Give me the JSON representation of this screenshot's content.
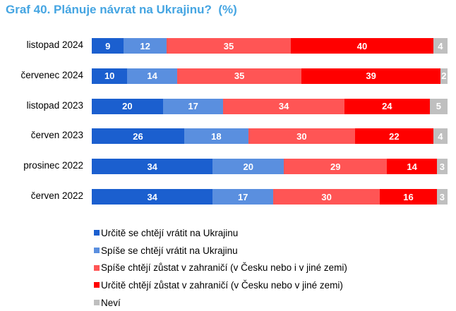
{
  "chart_data": {
    "type": "bar",
    "orientation": "horizontal",
    "stacked": true,
    "title": "Graf 40. Plánuje návrat na Ukrajinu?  (%)",
    "xlabel": "",
    "ylabel": "",
    "xlim": [
      0,
      100
    ],
    "grid": false,
    "legend_position": "bottom",
    "categories": [
      "listopad 2024",
      "červenec 2024",
      "listopad 2023",
      "červen 2023",
      "prosinec 2022",
      "červen 2022"
    ],
    "series": [
      {
        "name": "Určitě se chtějí vrátit na Ukrajinu",
        "color": "#1b5fcf",
        "values": [
          9,
          10,
          20,
          26,
          34,
          34
        ]
      },
      {
        "name": "Spíše se chtějí vrátit na Ukrajinu",
        "color": "#5a8fdf",
        "values": [
          12,
          14,
          17,
          18,
          20,
          17
        ]
      },
      {
        "name": "Spíše chtějí zůstat v zahraničí (v Česku nebo i v jiné zemi)",
        "color": "#ff5555",
        "values": [
          35,
          35,
          34,
          30,
          29,
          30
        ]
      },
      {
        "name": "Určitě chtějí zůstat v zahraničí (v Česku nebo v jiné zemi)",
        "color": "#ff0000",
        "values": [
          40,
          39,
          24,
          22,
          14,
          16
        ]
      },
      {
        "name": "Neví",
        "color": "#bfbfbf",
        "values": [
          4,
          2,
          5,
          4,
          3,
          3
        ]
      }
    ]
  }
}
